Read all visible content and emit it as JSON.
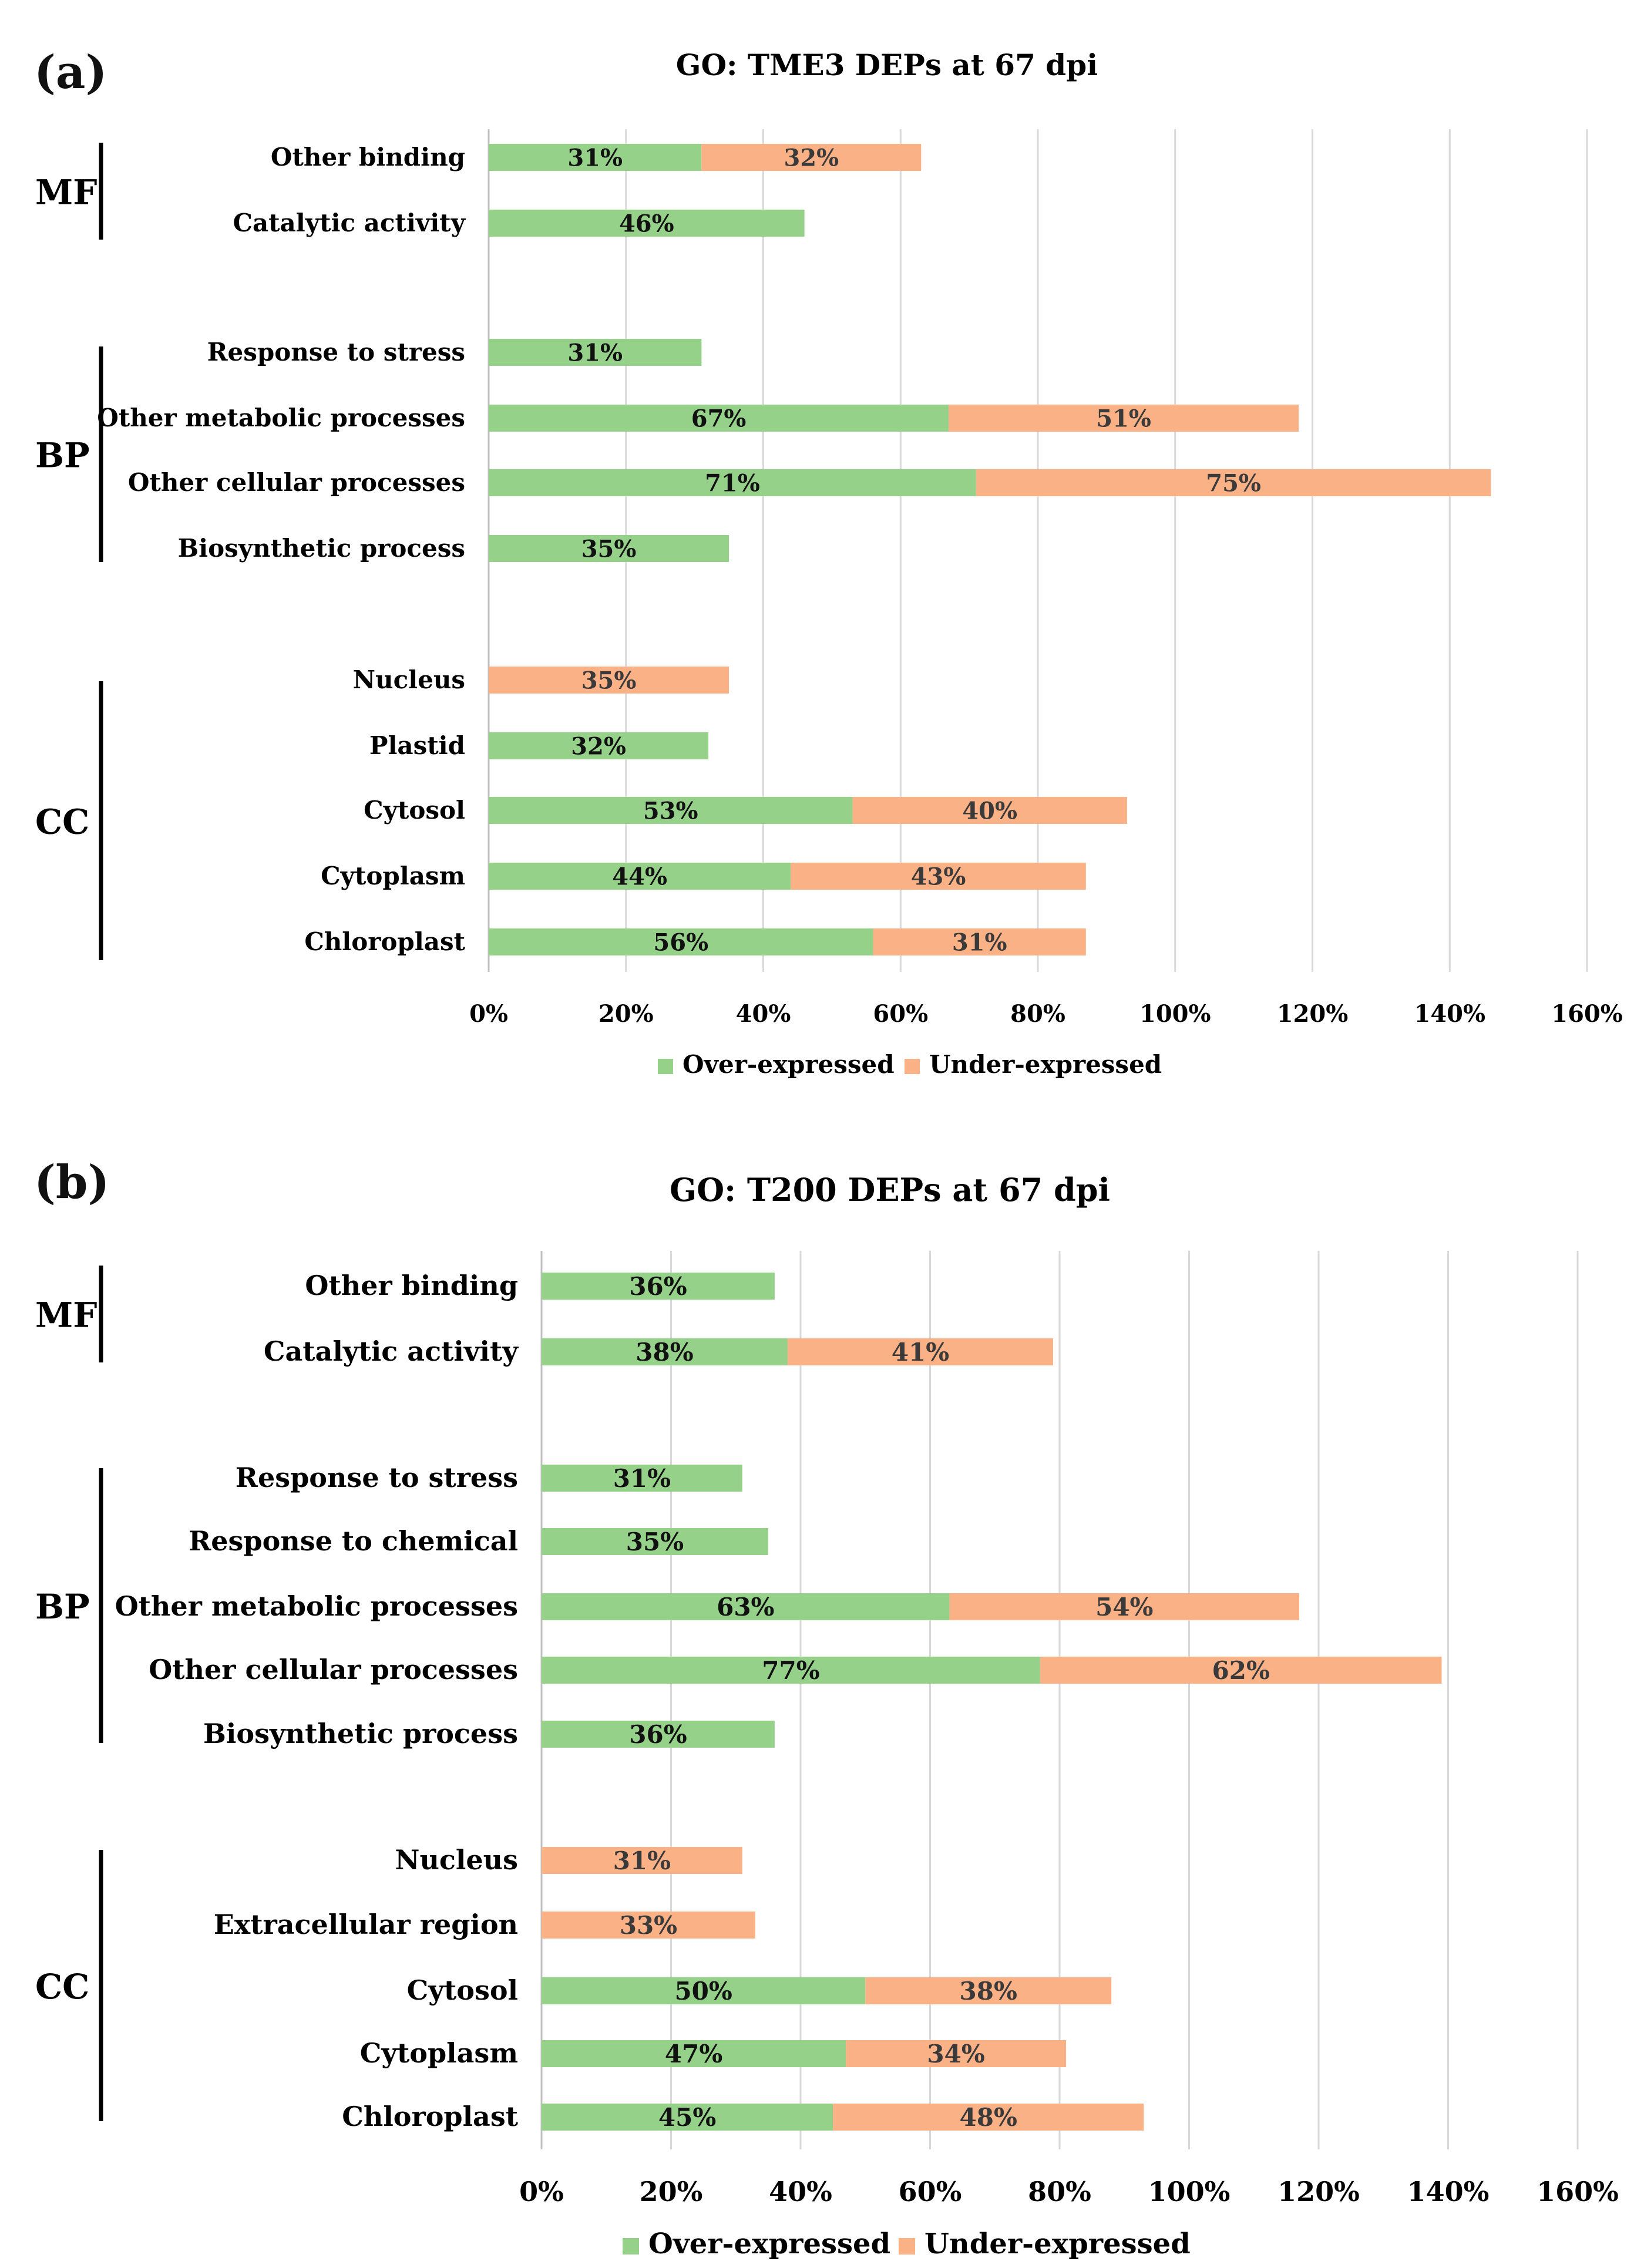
{
  "colors": {
    "over": "#96d18a",
    "under": "#fbb186",
    "grid": "#d9d9d9",
    "axis": "#bfbfbf",
    "bracket": "#000000"
  },
  "chart_data": [
    {
      "type": "bar",
      "stacked": true,
      "orientation": "horizontal",
      "panel_label": "(a)",
      "title": "GO: TME3 DEPs at 67 dpi",
      "xlim": [
        0,
        160
      ],
      "xticks": [
        "0%",
        "20%",
        "40%",
        "60%",
        "80%",
        "100%",
        "120%",
        "140%",
        "160%"
      ],
      "legend": [
        "Over-expressed",
        "Under-expressed"
      ],
      "legend_position": "bottom-center",
      "groups": [
        {
          "label": "MF",
          "categories": [
            "Other binding",
            "Catalytic activity"
          ]
        },
        {
          "label": "BP",
          "categories": [
            "Response to stress",
            "Other metabolic processes",
            "Other cellular processes",
            "Biosynthetic process"
          ]
        },
        {
          "label": "CC",
          "categories": [
            "Nucleus",
            "Plastid",
            "Cytosol",
            "Cytoplasm",
            "Chloroplast"
          ]
        }
      ],
      "categories": [
        "Other binding",
        "Catalytic activity",
        "Response to stress",
        "Other metabolic processes",
        "Other cellular processes",
        "Biosynthetic process",
        "Nucleus",
        "Plastid",
        "Cytosol",
        "Cytoplasm",
        "Chloroplast"
      ],
      "series": [
        {
          "name": "Over-expressed",
          "values": [
            31,
            46,
            31,
            67,
            71,
            35,
            null,
            32,
            53,
            44,
            56
          ],
          "labels": [
            "31%",
            "46%",
            "31%",
            "67%",
            "71%",
            "35%",
            "",
            "32%",
            "53%",
            "44%",
            "56%"
          ]
        },
        {
          "name": "Under-expressed",
          "values": [
            32,
            null,
            null,
            51,
            75,
            null,
            35,
            null,
            40,
            43,
            31
          ],
          "labels": [
            "32%",
            "",
            "",
            "51%",
            "75%",
            "",
            "35%",
            "",
            "40%",
            "43%",
            "31%"
          ]
        }
      ]
    },
    {
      "type": "bar",
      "stacked": true,
      "orientation": "horizontal",
      "panel_label": "(b)",
      "title": "GO: T200 DEPs at 67 dpi",
      "xlim": [
        0,
        160
      ],
      "xticks": [
        "0%",
        "20%",
        "40%",
        "60%",
        "80%",
        "100%",
        "120%",
        "140%",
        "160%"
      ],
      "legend": [
        "Over-expressed",
        "Under-expressed"
      ],
      "legend_position": "bottom-center",
      "groups": [
        {
          "label": "MF",
          "categories": [
            "Other binding",
            "Catalytic activity"
          ]
        },
        {
          "label": "BP",
          "categories": [
            "Response to stress",
            "Response to chemical",
            "Other metabolic processes",
            "Other cellular processes",
            "Biosynthetic process"
          ]
        },
        {
          "label": "CC",
          "categories": [
            "Nucleus",
            "Extracellular region",
            "Cytosol",
            "Cytoplasm",
            "Chloroplast"
          ]
        }
      ],
      "categories": [
        "Other binding",
        "Catalytic activity",
        "Response to stress",
        "Response to chemical",
        "Other metabolic processes",
        "Other cellular processes",
        "Biosynthetic process",
        "Nucleus",
        "Extracellular region",
        "Cytosol",
        "Cytoplasm",
        "Chloroplast"
      ],
      "series": [
        {
          "name": "Over-expressed",
          "values": [
            36,
            38,
            31,
            35,
            63,
            77,
            36,
            null,
            null,
            50,
            47,
            45
          ],
          "labels": [
            "36%",
            "38%",
            "31%",
            "35%",
            "63%",
            "77%",
            "36%",
            "",
            "",
            "50%",
            "47%",
            "45%"
          ]
        },
        {
          "name": "Under-expressed",
          "values": [
            null,
            41,
            null,
            null,
            54,
            62,
            null,
            31,
            33,
            38,
            34,
            48
          ],
          "labels": [
            "",
            "41%",
            "",
            "",
            "54%",
            "62%",
            "",
            "31%",
            "33%",
            "38%",
            "34%",
            "48%"
          ]
        }
      ]
    }
  ]
}
